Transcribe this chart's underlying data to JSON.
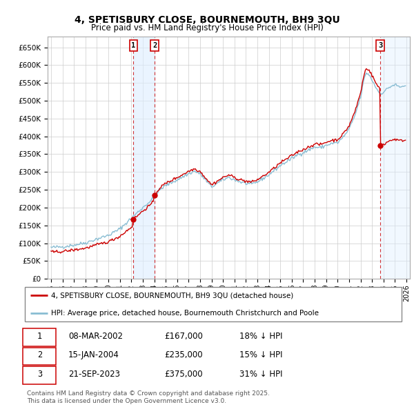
{
  "title": "4, SPETISBURY CLOSE, BOURNEMOUTH, BH9 3QU",
  "subtitle": "Price paid vs. HM Land Registry's House Price Index (HPI)",
  "background_color": "#ffffff",
  "plot_bg_color": "#ffffff",
  "grid_color": "#cccccc",
  "hpi_color": "#89bdd3",
  "property_color": "#cc0000",
  "shade_color": "#ddeeff",
  "sale_prices": [
    167000,
    235000,
    375000
  ],
  "sale_labels": [
    "1",
    "2",
    "3"
  ],
  "legend_property": "4, SPETISBURY CLOSE, BOURNEMOUTH, BH9 3QU (detached house)",
  "legend_hpi": "HPI: Average price, detached house, Bournemouth Christchurch and Poole",
  "table_data": [
    [
      "1",
      "08-MAR-2002",
      "£167,000",
      "18% ↓ HPI"
    ],
    [
      "2",
      "15-JAN-2004",
      "£235,000",
      "15% ↓ HPI"
    ],
    [
      "3",
      "21-SEP-2023",
      "£375,000",
      "31% ↓ HPI"
    ]
  ],
  "footnote": "Contains HM Land Registry data © Crown copyright and database right 2025.\nThis data is licensed under the Open Government Licence v3.0.",
  "ylim": [
    0,
    680000
  ],
  "yticks": [
    0,
    50000,
    100000,
    150000,
    200000,
    250000,
    300000,
    350000,
    400000,
    450000,
    500000,
    550000,
    600000,
    650000
  ],
  "xlim_start": 1994.7,
  "xlim_end": 2026.3
}
